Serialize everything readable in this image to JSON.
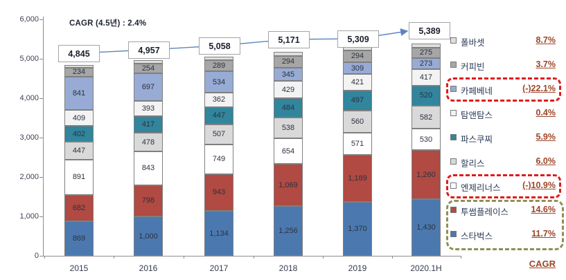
{
  "chart_note": "CAGR (4.5년) :  2.4%",
  "chart_data": {
    "type": "bar",
    "stacked": true,
    "title": "",
    "xlabel": "",
    "ylabel": "",
    "categories": [
      "2015",
      "2016",
      "2017",
      "2018",
      "2019",
      "2020.1H"
    ],
    "ylim": [
      0,
      6000
    ],
    "ytick_step": 1000,
    "yticks": [
      "0",
      "1,000",
      "2,000",
      "3,000",
      "4,000",
      "5,000",
      "6,000"
    ],
    "grid": false,
    "legend_position": "right",
    "totals": [
      4845,
      4957,
      5058,
      5171,
      5309,
      5389
    ],
    "trend_line_color": "#5c85c0",
    "series": [
      {
        "name": "스타벅스",
        "color": "#4b79af",
        "values": [
          869,
          1000,
          1134,
          1256,
          1370,
          1430
        ],
        "cagr": "11.7%",
        "highlight": "olive"
      },
      {
        "name": "투썸플레이스",
        "color": "#b04a42",
        "values": [
          682,
          798,
          943,
          1069,
          1189,
          1260
        ],
        "cagr": "14.6%",
        "highlight": "olive"
      },
      {
        "name": "엔제리너스",
        "color": "#ffffff",
        "values": [
          891,
          843,
          749,
          654,
          571,
          530
        ],
        "cagr": "(-)10.9%",
        "highlight": "red"
      },
      {
        "name": "할리스",
        "color": "#d9d9d9",
        "values": [
          447,
          478,
          507,
          538,
          560,
          582
        ],
        "cagr": "6.0%",
        "highlight": null
      },
      {
        "name": "파스쿠찌",
        "color": "#31859c",
        "values": [
          402,
          417,
          447,
          484,
          497,
          520
        ],
        "cagr": "5.9%",
        "highlight": null
      },
      {
        "name": "탐앤탐스",
        "color": "#f3f3f3",
        "values": [
          409,
          393,
          362,
          429,
          421,
          417
        ],
        "cagr": "0.4%",
        "highlight": null
      },
      {
        "name": "카페베네",
        "color": "#97abd5",
        "values": [
          841,
          697,
          534,
          345,
          309,
          273
        ],
        "cagr": "(-)22.1%",
        "highlight": "red"
      },
      {
        "name": "커피빈",
        "color": "#a6a6a6",
        "values": [
          234,
          254,
          289,
          294,
          294,
          275
        ],
        "cagr": "3.7%",
        "highlight": null
      },
      {
        "name": "폴바셋",
        "color": "#dfdfdf",
        "values": [
          70,
          77,
          93,
          102,
          98,
          102
        ],
        "cagr": "8.7%",
        "highlight": null,
        "labels_hidden": true
      }
    ]
  },
  "legend": {
    "heading": "CAGR",
    "pct_color": "#9c4428",
    "highlight_red": "#e01a1a",
    "highlight_olive": "#8f8f55"
  }
}
